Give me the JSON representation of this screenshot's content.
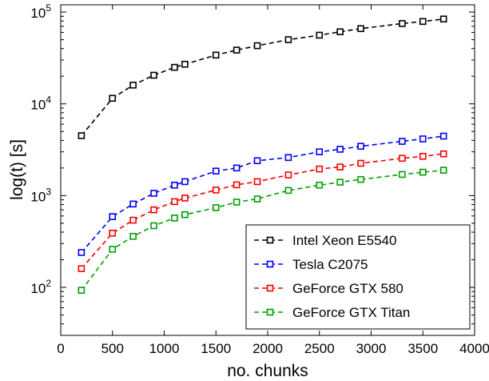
{
  "chart_data": {
    "type": "line",
    "title": "",
    "xlabel": "no. chunks",
    "ylabel": "log(t) [s]",
    "xlim": [
      0,
      4000
    ],
    "ylim": [
      30,
      120000
    ],
    "yscale": "log",
    "grid": false,
    "legend_position": "bottom-right",
    "x_ticks": [
      0,
      500,
      1000,
      1500,
      2000,
      2500,
      3000,
      3500,
      4000
    ],
    "x_tick_labels": [
      "0",
      "500",
      "1000",
      "1500",
      "2000",
      "2500",
      "3000",
      "3500",
      "4000"
    ],
    "y_ticks": [
      100,
      1000,
      10000,
      100000
    ],
    "y_tick_labels": [
      {
        "base": "10",
        "exp": "2"
      },
      {
        "base": "10",
        "exp": "3"
      },
      {
        "base": "10",
        "exp": "4"
      },
      {
        "base": "10",
        "exp": "5"
      }
    ],
    "x": [
      200,
      500,
      700,
      900,
      1100,
      1200,
      1500,
      1700,
      1900,
      2200,
      2500,
      2700,
      2900,
      3300,
      3500,
      3700
    ],
    "series": [
      {
        "name": "Intel Xeon E5540",
        "color": "#000000",
        "values": [
          4500,
          11500,
          16000,
          20500,
          25000,
          27000,
          34000,
          38500,
          43000,
          50000,
          56000,
          61000,
          66000,
          75000,
          79000,
          84000
        ]
      },
      {
        "name": "Tesla C2075",
        "color": "#0000ff",
        "values": [
          240,
          590,
          810,
          1060,
          1300,
          1420,
          1850,
          2000,
          2400,
          2600,
          3000,
          3200,
          3450,
          3900,
          4150,
          4450
        ]
      },
      {
        "name": "GeForce GTX 580",
        "color": "#ff0000",
        "values": [
          160,
          390,
          540,
          700,
          860,
          940,
          1150,
          1310,
          1420,
          1680,
          1950,
          2050,
          2250,
          2550,
          2680,
          2850
        ]
      },
      {
        "name": "GeForce GTX Titan",
        "color": "#00a000",
        "values": [
          93,
          260,
          360,
          470,
          570,
          620,
          740,
          850,
          920,
          1140,
          1300,
          1400,
          1500,
          1700,
          1800,
          1890
        ]
      }
    ]
  }
}
